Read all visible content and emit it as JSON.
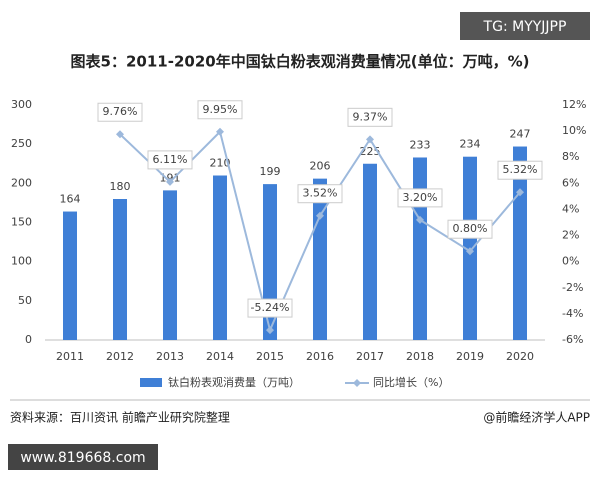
{
  "chart_data": {
    "type": "bar",
    "title": "图表5：2011-2020年中国钛白粉表观消费量情况(单位：万吨，%)",
    "categories": [
      "2011",
      "2012",
      "2013",
      "2014",
      "2015",
      "2016",
      "2017",
      "2018",
      "2019",
      "2020"
    ],
    "series": [
      {
        "name": "钛白粉表观消费量（万吨）",
        "color": "#3f7fd6",
        "type": "bar",
        "values": [
          164,
          180,
          191,
          210,
          199,
          206,
          225,
          233,
          234,
          247
        ]
      },
      {
        "name": "同比增长（%）",
        "color": "#9db9dc",
        "type": "line",
        "axis": "y2",
        "values": [
          null,
          9.76,
          6.11,
          9.95,
          -5.24,
          3.52,
          9.37,
          3.2,
          0.8,
          5.32
        ],
        "value_labels": [
          null,
          "9.76%",
          "6.11%",
          "9.95%",
          "-5.24%",
          "3.52%",
          "9.37%",
          "3.20%",
          "0.80%",
          "5.32%"
        ]
      }
    ],
    "ylim": [
      0,
      300
    ],
    "yticks": [
      0,
      50,
      100,
      150,
      200,
      250,
      300
    ],
    "y2lim": [
      -6,
      12
    ],
    "y2ticks": [
      {
        "value": -6,
        "label": "-6%"
      },
      {
        "value": -4,
        "label": "-4%"
      },
      {
        "value": -2,
        "label": "-2%"
      },
      {
        "value": 0,
        "label": "0%"
      },
      {
        "value": 2,
        "label": "2%"
      },
      {
        "value": 4,
        "label": "4%"
      },
      {
        "value": 6,
        "label": "6%"
      },
      {
        "value": 8,
        "label": "8%"
      },
      {
        "value": 10,
        "label": "10%"
      },
      {
        "value": 12,
        "label": "12%"
      }
    ],
    "legend": "bottom"
  },
  "source": "资料来源：百川资讯 前瞻产业研究院整理",
  "credit": "@前瞻经济学人APP",
  "watermark_top": "TG: MYYJJPP",
  "watermark_bottom": "www.819668.com"
}
